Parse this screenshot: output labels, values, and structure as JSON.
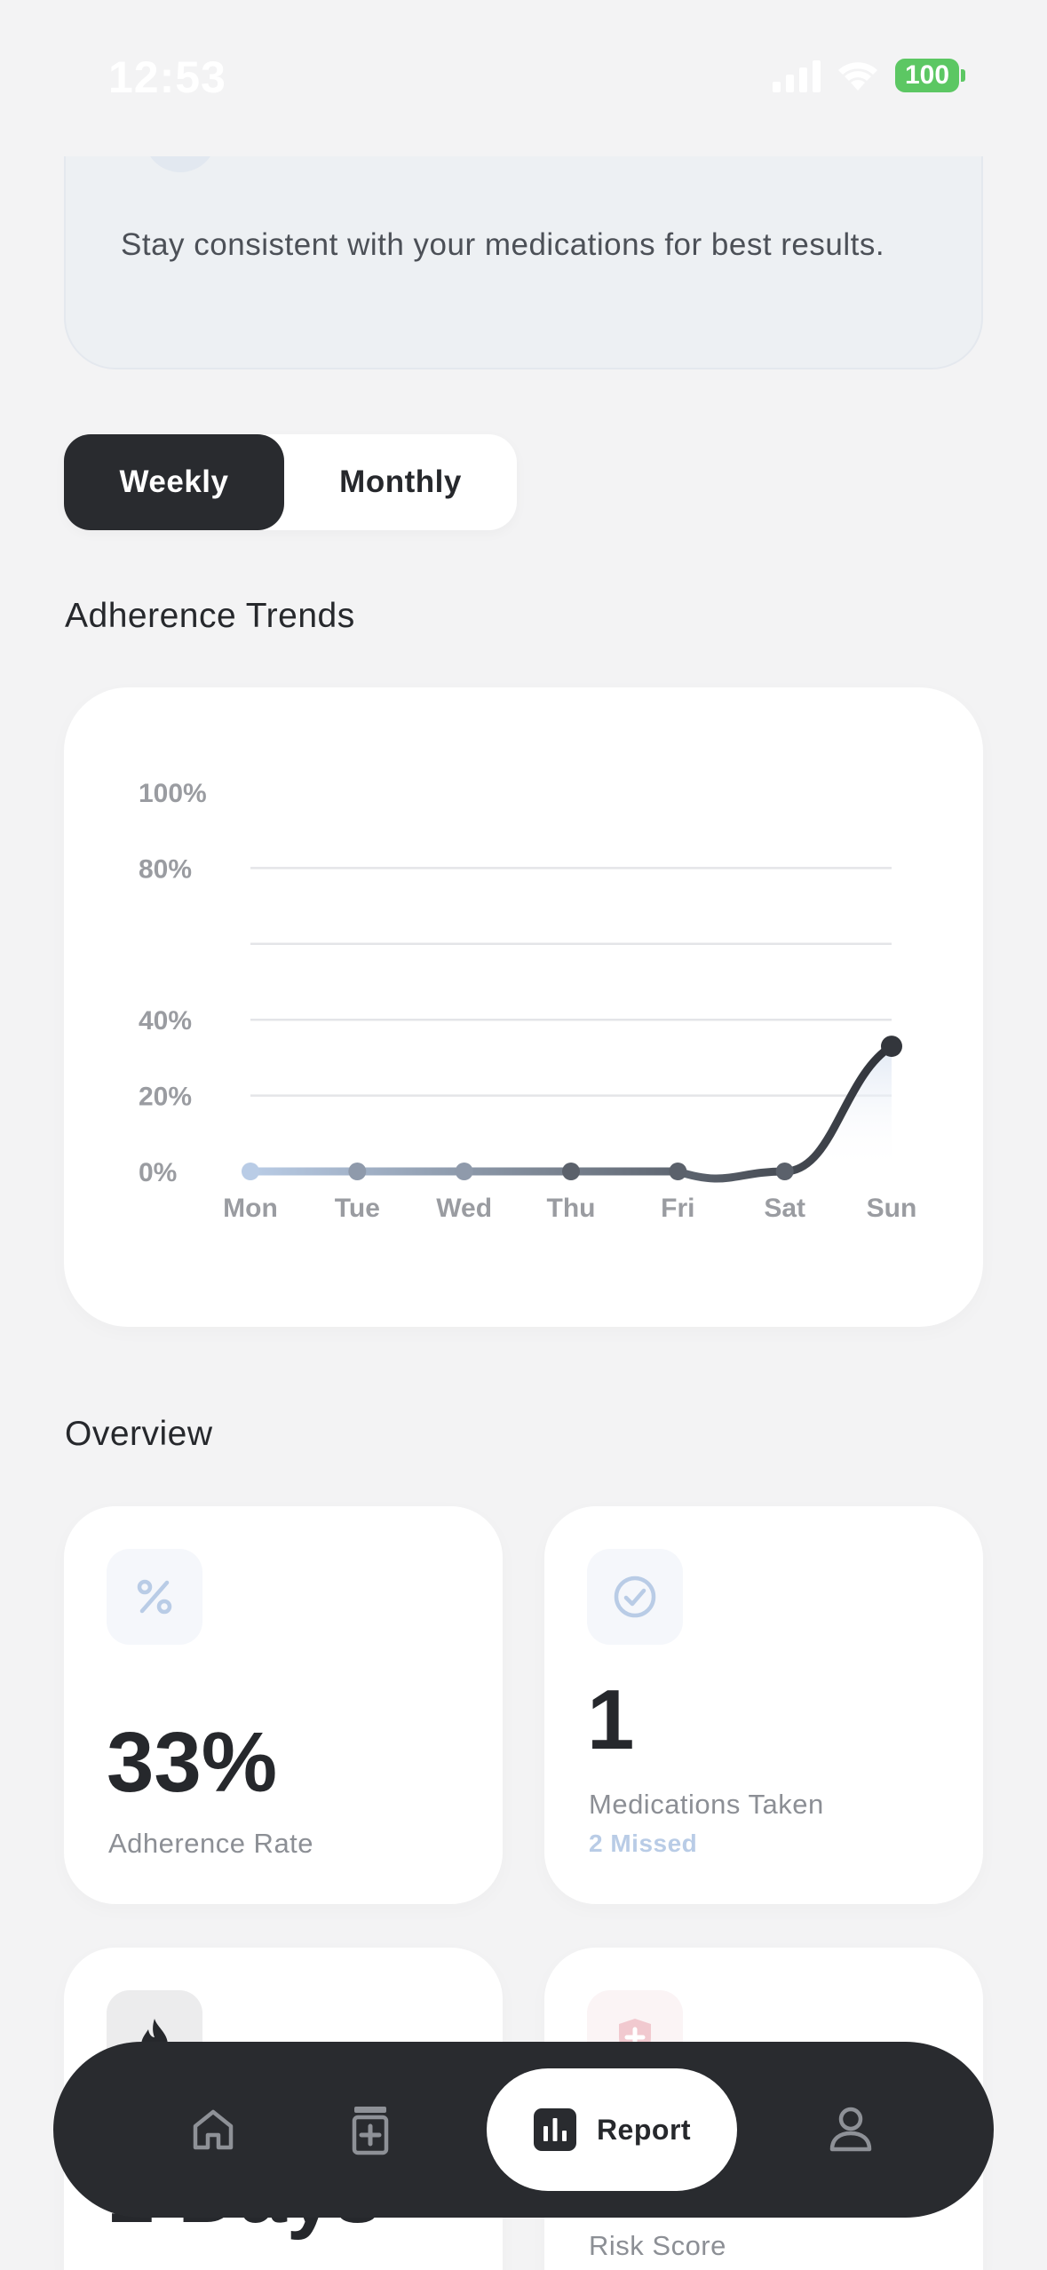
{
  "status_bar": {
    "time": "12:53",
    "battery": "100",
    "icons": [
      "signal-icon",
      "wifi-icon",
      "battery-icon"
    ]
  },
  "tip_card": {
    "text": "Stay consistent with your medications for best results."
  },
  "period_toggle": {
    "options": [
      "Weekly",
      "Monthly"
    ],
    "selected": "Weekly"
  },
  "trends": {
    "title": "Adherence Trends"
  },
  "chart_data": {
    "type": "line",
    "categories": [
      "Mon",
      "Tue",
      "Wed",
      "Thu",
      "Fri",
      "Sat",
      "Sun"
    ],
    "values": [
      0,
      0,
      0,
      0,
      0,
      0,
      33
    ],
    "y_ticks": [
      "100%",
      "80%",
      "40%",
      "20%",
      "0%"
    ],
    "ylim": [
      0,
      100
    ],
    "grid": true,
    "line_color": "#33363c",
    "start_color": "#b9cce6"
  },
  "overview": {
    "title": "Overview",
    "cards": [
      {
        "icon": "percent-icon",
        "value": "33%",
        "label": "Adherence Rate"
      },
      {
        "icon": "check-circle-icon",
        "value": "1",
        "label": "Medications Taken",
        "sub": "2 Missed"
      },
      {
        "icon": "flame-icon",
        "value": "1 Days"
      },
      {
        "icon": "shield-plus-icon",
        "label": "Risk Score"
      }
    ]
  },
  "bottom_nav": {
    "items": [
      {
        "icon": "home-icon"
      },
      {
        "icon": "medicine-icon"
      },
      {
        "icon": "chart-icon",
        "label": "Report",
        "active": true
      },
      {
        "icon": "profile-icon"
      }
    ]
  },
  "colors": {
    "accent": "#292b2f",
    "background": "#f3f3f4",
    "battery": "#5cc763",
    "muted_blue": "#b9cce6"
  }
}
